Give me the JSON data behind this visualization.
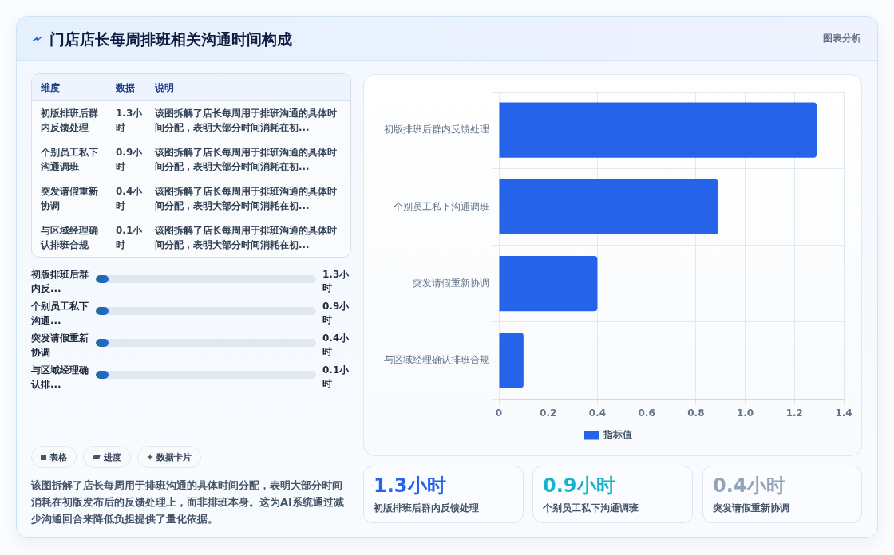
{
  "chart_data": [
    {
      "type": "other",
      "title": "门店店长每周排班相关沟通时间构成",
      "annotations": [
        "图表分析"
      ]
    },
    {
      "type": "other",
      "annotations": [
        "维度",
        "数据",
        "说明",
        "初版排班后群内反馈处理",
        "1.3小时",
        "该图拆解了店长每周用于排班沟通的具体时间分配，表明大部分时间消耗在初...",
        "个别员工私下沟通调班",
        "0.9小时",
        "该图拆解了店长每周用于排班沟通的具体时间分配，表明大部分时间消耗在初...",
        "突发请假重新协调",
        "0.4小时",
        "该图拆解了店长每周用于排班沟通的具体时间分配，表明大部分时间消耗在初...",
        "与区域经理确认排班合规",
        "0.1小时",
        "该图拆解了店长每周用于排班沟通的具体时间分配，表明大部分时间消耗在初...",
        "初版排班后群内反...",
        "1.3小时",
        "个别员工私下沟通...",
        "0.9小时",
        "突发请假重新协调",
        "0.4小时",
        "与区域经理确认排...",
        "0.1小时",
        "表格",
        "进度",
        "数据卡片",
        "该图拆解了店长每周用于排班沟通的具体时间分配，表明大部分时间消耗在初版发布后的反馈处理上，而非排班本身。这为AI系统通过减少沟通回合来降低负担提供了量化依据。"
      ]
    },
    {
      "type": "bar",
      "orientation": "horizontal",
      "categories": [
        "初版排班后群内反馈处理",
        "个别员工私下沟通调班",
        "突发请假重新协调",
        "与区域经理确认排班合规"
      ],
      "series": [
        {
          "name": "指标值",
          "color": "#2563eb",
          "values": [
            1.29,
            0.89,
            0.4,
            0.1
          ]
        }
      ],
      "xlim": [
        0,
        1.4
      ],
      "xticks": [
        0,
        0.2,
        0.4,
        0.6,
        0.8,
        {
          "value": 1,
          "label": "1.0"
        },
        1.2,
        1.4
      ],
      "grid": true,
      "legend": "bottom"
    },
    {
      "type": "other",
      "annotations": [
        "1.3小时",
        "初版排班后群内反馈处理",
        "0.9小时",
        "个别员工私下沟通调班",
        "0.4小时",
        "突发请假重新协调"
      ]
    }
  ]
}
